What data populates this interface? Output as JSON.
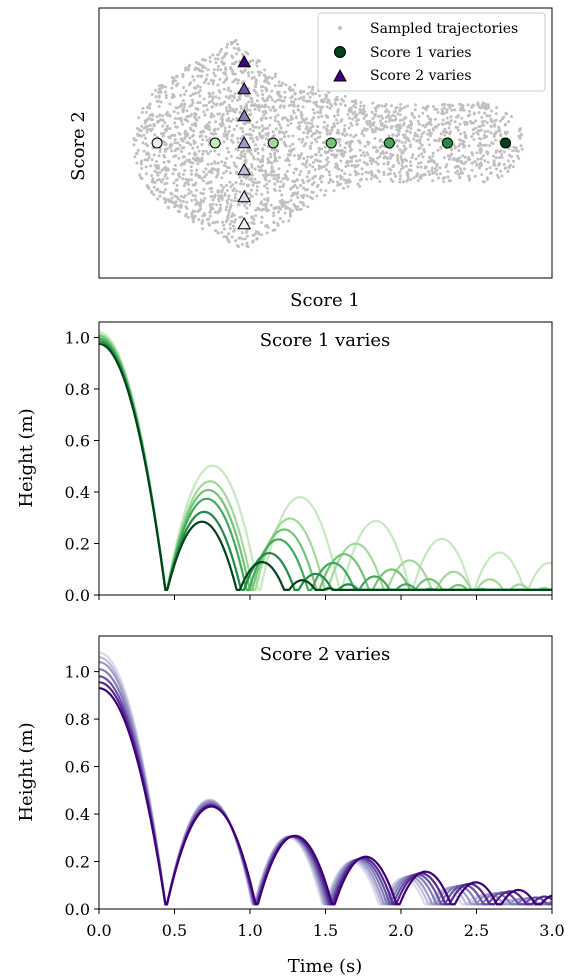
{
  "chart_data": [
    {
      "type": "scatter",
      "xlabel": "Score 1",
      "ylabel": "Score 2",
      "x_ticks_shown": false,
      "y_ticks_shown": false,
      "legend_position": "top-right",
      "legend": [
        "Sampled trajectories",
        "Score 1 varies",
        "Score 2 varies"
      ],
      "background_series": {
        "name": "Sampled trajectories",
        "color": "#c0c0c0",
        "shape": "dense cloud, wide at right and left, narrower in middle",
        "x_range": [
          -3.4,
          3.3
        ],
        "y_range": [
          -2.0,
          2.0
        ]
      },
      "score1_points": {
        "name": "Score 1 varies",
        "x": [
          -3.0,
          -2.0,
          -1.0,
          0.0,
          1.0,
          2.0,
          3.0
        ],
        "y": [
          0,
          0,
          0,
          0,
          0,
          0,
          0
        ],
        "colors": [
          "#e5f5e0",
          "#c7e9c0",
          "#a1d99b",
          "#74c476",
          "#41ab5d",
          "#238b45",
          "#00441b"
        ]
      },
      "score2_points": {
        "name": "Score 2 varies",
        "x": [
          -1.5,
          -1.5,
          -1.5,
          -1.5,
          -1.5,
          -1.5,
          -1.5
        ],
        "y": [
          -3,
          -2,
          -1,
          0,
          1,
          2,
          3
        ],
        "colors": [
          "#efedf5",
          "#dadaeb",
          "#bcbddc",
          "#9e9ac8",
          "#807dba",
          "#6a51a3",
          "#3f007d"
        ]
      }
    },
    {
      "type": "line",
      "title": "Score 1 varies",
      "ylabel": "Height (m)",
      "xlim": [
        0,
        3
      ],
      "ylim": [
        0,
        1.06
      ],
      "yticks": [
        "0.0",
        "0.2",
        "0.4",
        "0.6",
        "0.8",
        "1.0"
      ],
      "x_ticklabels_shown": false,
      "series": [
        {
          "h0": 1.02,
          "first_bounce": 0.444,
          "ratio": 0.87,
          "color": "#c7e9c0"
        },
        {
          "h0": 1.01,
          "first_bounce": 0.444,
          "ratio": 0.82,
          "color": "#a1d99b"
        },
        {
          "h0": 1.005,
          "first_bounce": 0.444,
          "ratio": 0.79,
          "color": "#74c476"
        },
        {
          "h0": 0.995,
          "first_bounce": 0.444,
          "ratio": 0.76,
          "color": "#41ab5d"
        },
        {
          "h0": 0.985,
          "first_bounce": 0.444,
          "ratio": 0.71,
          "color": "#238b45"
        },
        {
          "h0": 0.975,
          "first_bounce": 0.444,
          "ratio": 0.67,
          "color": "#00441b"
        }
      ]
    },
    {
      "type": "line",
      "title": "Score 2 varies",
      "xlabel": "Time (s)",
      "ylabel": "Height (m)",
      "xlim": [
        0,
        3
      ],
      "ylim": [
        0,
        1.15
      ],
      "xticks": [
        "0.0",
        "0.5",
        "1.0",
        "1.5",
        "2.0",
        "2.5",
        "3.0"
      ],
      "yticks": [
        "0.0",
        "0.2",
        "0.4",
        "0.6",
        "0.8",
        "1.0"
      ],
      "series": [
        {
          "h0": 1.08,
          "first_bounce": 0.444,
          "ratio": 0.81,
          "color": "#dadaeb"
        },
        {
          "h0": 1.06,
          "first_bounce": 0.444,
          "ratio": 0.815,
          "color": "#bcbddc"
        },
        {
          "h0": 1.04,
          "first_bounce": 0.444,
          "ratio": 0.82,
          "color": "#9e9ac8"
        },
        {
          "h0": 1.01,
          "first_bounce": 0.444,
          "ratio": 0.826,
          "color": "#807dba"
        },
        {
          "h0": 0.98,
          "first_bounce": 0.444,
          "ratio": 0.832,
          "color": "#6a51a3"
        },
        {
          "h0": 0.955,
          "first_bounce": 0.444,
          "ratio": 0.838,
          "color": "#54278f"
        },
        {
          "h0": 0.93,
          "first_bounce": 0.444,
          "ratio": 0.845,
          "color": "#3f007d"
        }
      ]
    }
  ]
}
